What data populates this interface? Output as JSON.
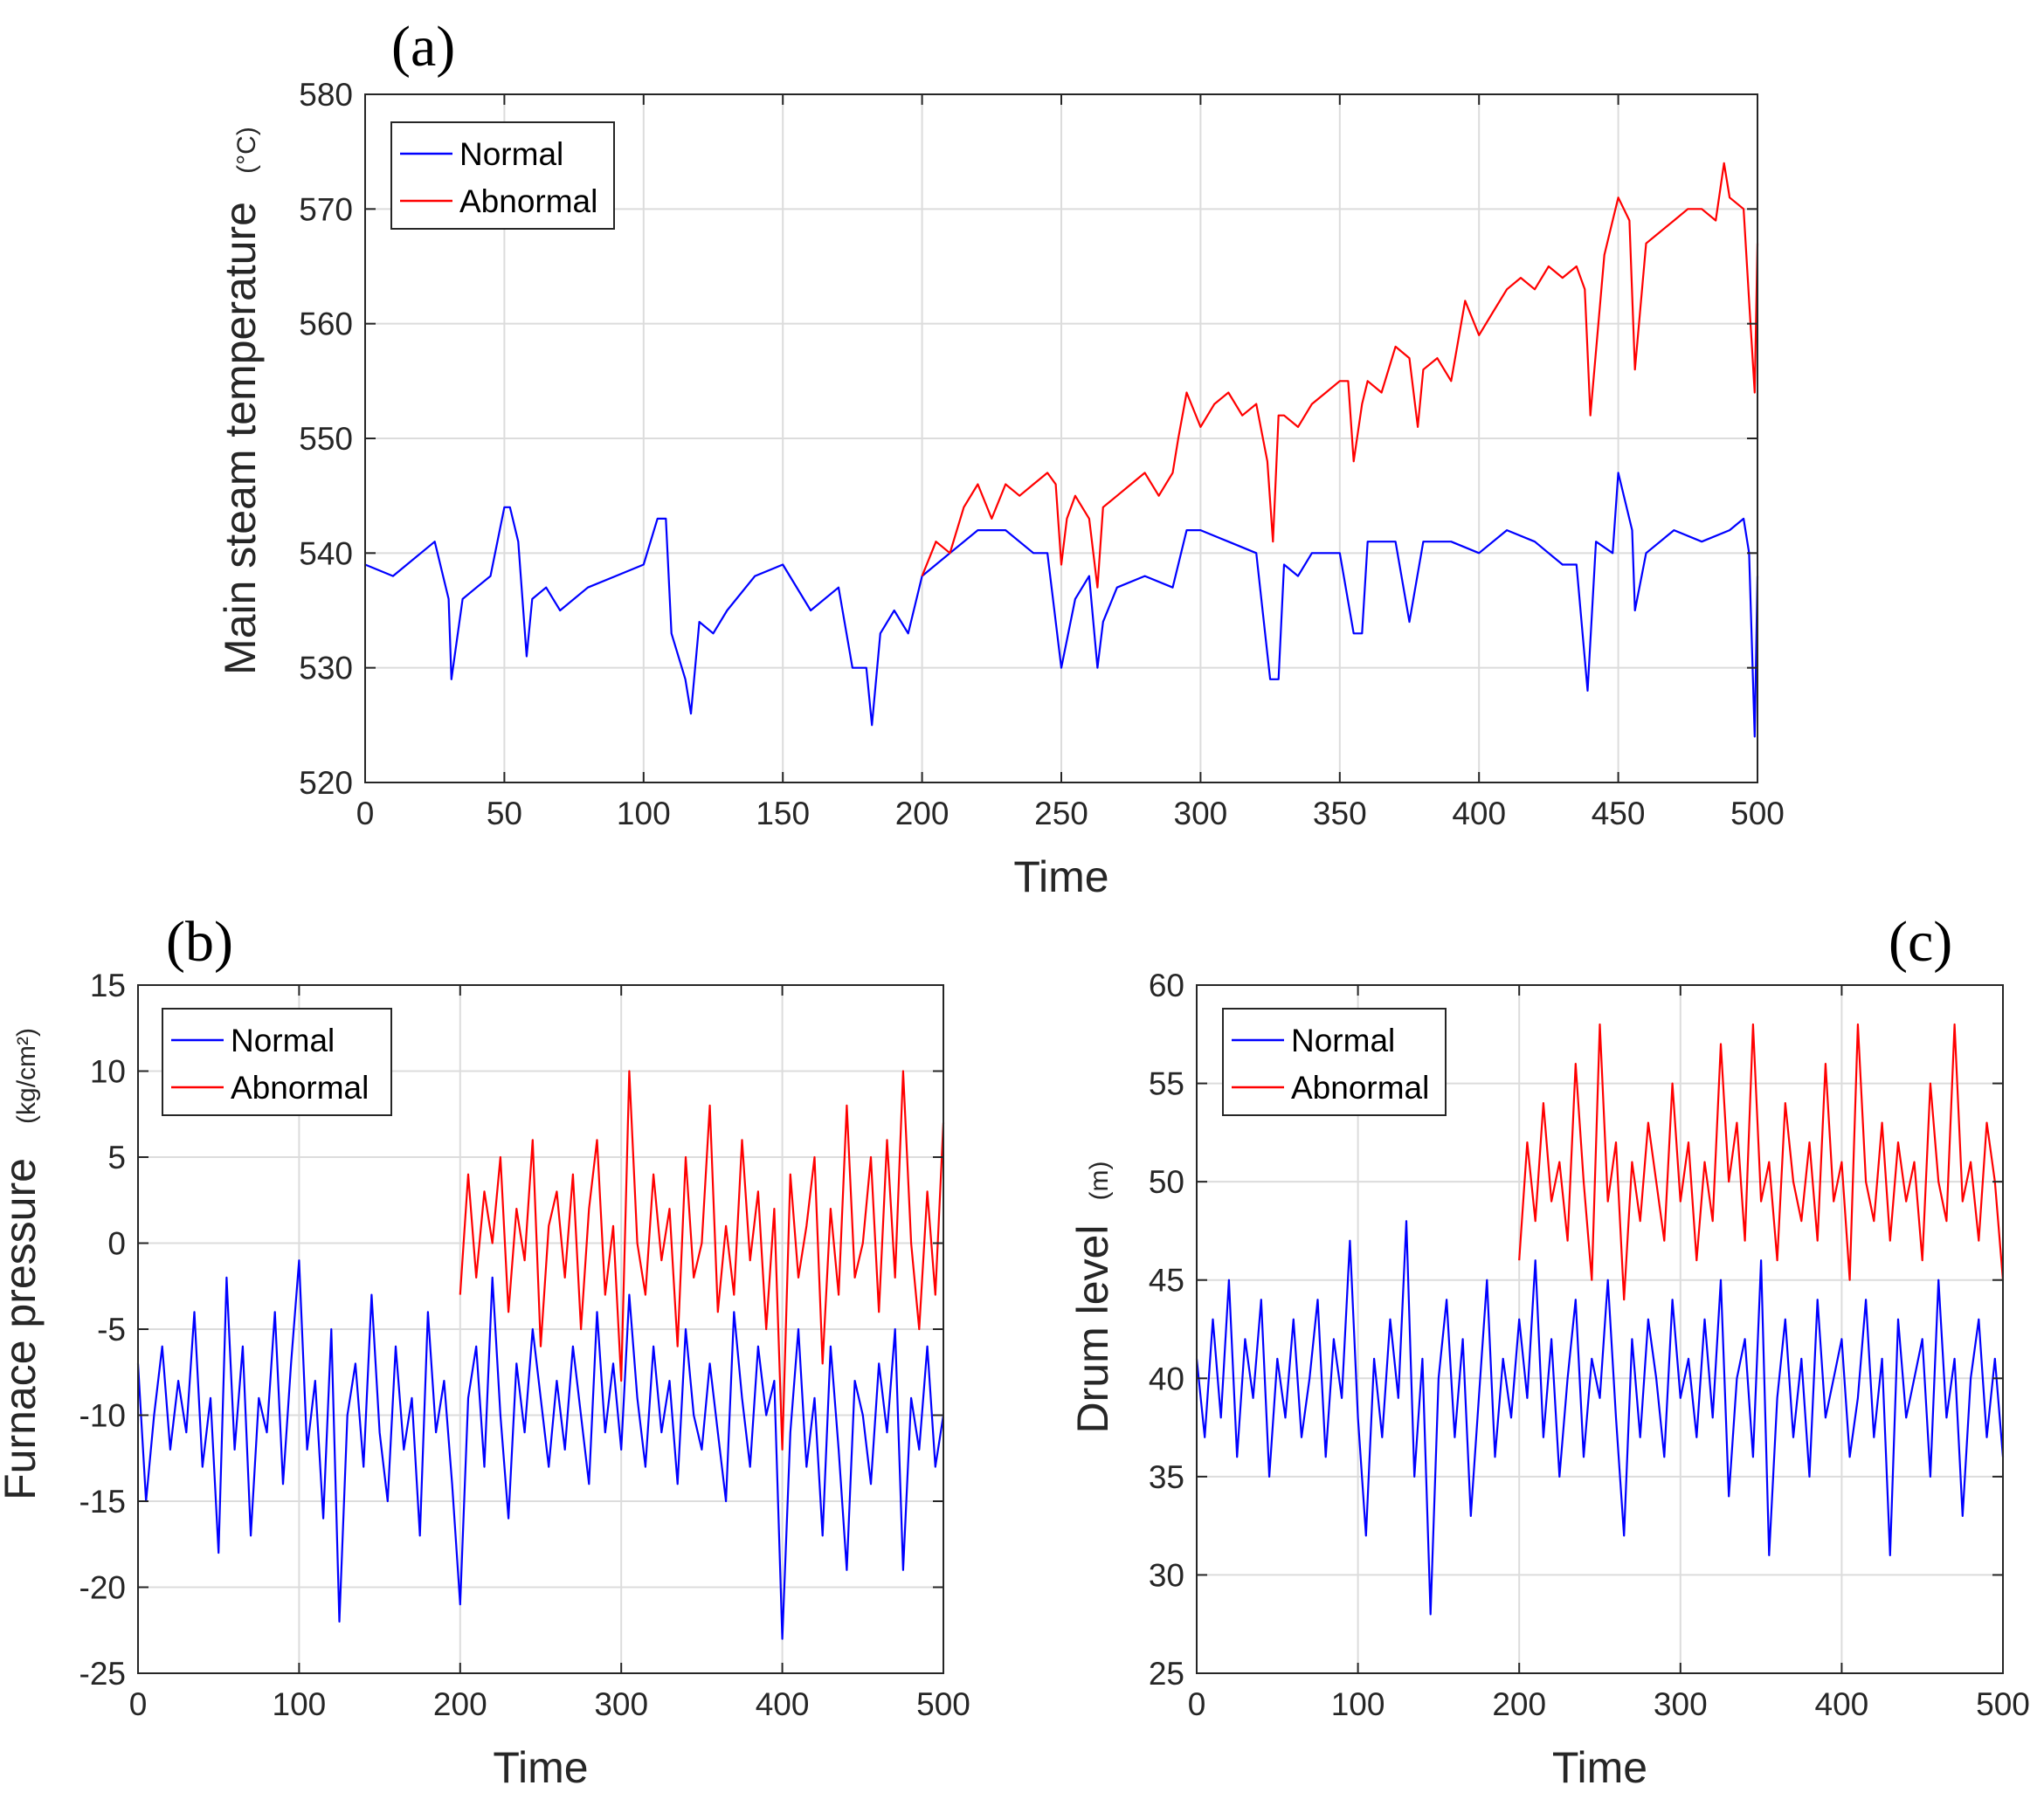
{
  "chart_data": [
    {
      "type": "line",
      "id": "a",
      "panel_label": "(a)",
      "xlabel": "Time",
      "ylabel": "Main steam temperature",
      "yunit": "(°C)",
      "xlim": [
        0,
        500
      ],
      "ylim": [
        520,
        580
      ],
      "xticks": [
        0,
        50,
        100,
        150,
        200,
        250,
        300,
        350,
        400,
        450,
        500
      ],
      "yticks": [
        520,
        530,
        540,
        550,
        560,
        570,
        580
      ],
      "grid": true,
      "legend_position": "top-left",
      "series": [
        {
          "name": "Normal",
          "color": "#0000ff",
          "x": [
            0,
            10,
            20,
            25,
            30,
            31,
            35,
            40,
            45,
            50,
            52,
            55,
            58,
            60,
            65,
            70,
            80,
            90,
            100,
            105,
            108,
            110,
            115,
            117,
            120,
            125,
            130,
            140,
            150,
            160,
            170,
            175,
            180,
            182,
            185,
            190,
            195,
            200,
            210,
            220,
            230,
            240,
            245,
            250,
            255,
            260,
            263,
            265,
            270,
            280,
            290,
            295,
            300,
            310,
            320,
            325,
            328,
            330,
            335,
            340,
            350,
            355,
            358,
            360,
            370,
            375,
            380,
            390,
            400,
            410,
            420,
            430,
            435,
            439,
            442,
            448,
            450,
            455,
            456,
            460,
            470,
            480,
            490,
            495,
            497,
            499,
            500
          ],
          "values": [
            539,
            538,
            540,
            541,
            536,
            529,
            536,
            537,
            538,
            544,
            544,
            541,
            531,
            536,
            537,
            535,
            537,
            538,
            539,
            543,
            543,
            533,
            529,
            526,
            534,
            533,
            535,
            538,
            539,
            535,
            537,
            530,
            530,
            525,
            533,
            535,
            533,
            538,
            540,
            542,
            542,
            540,
            540,
            530,
            536,
            538,
            530,
            534,
            537,
            538,
            537,
            542,
            542,
            541,
            540,
            529,
            529,
            539,
            538,
            540,
            540,
            533,
            533,
            541,
            541,
            534,
            541,
            541,
            540,
            542,
            541,
            539,
            539,
            528,
            541,
            540,
            547,
            542,
            535,
            540,
            542,
            541,
            542,
            543,
            540,
            524,
            538
          ]
        },
        {
          "name": "Abnormal",
          "color": "#ff0000",
          "x": [
            200,
            205,
            210,
            215,
            220,
            225,
            230,
            235,
            240,
            245,
            248,
            250,
            252,
            255,
            260,
            263,
            265,
            270,
            275,
            280,
            285,
            290,
            292,
            295,
            300,
            305,
            310,
            315,
            320,
            324,
            326,
            328,
            330,
            335,
            340,
            345,
            350,
            353,
            355,
            358,
            360,
            365,
            370,
            375,
            378,
            380,
            385,
            390,
            395,
            400,
            405,
            410,
            415,
            420,
            425,
            430,
            435,
            438,
            440,
            445,
            448,
            450,
            454,
            456,
            460,
            465,
            470,
            475,
            480,
            485,
            488,
            490,
            495,
            497,
            499,
            500
          ],
          "values": [
            538,
            541,
            540,
            544,
            546,
            543,
            546,
            545,
            546,
            547,
            546,
            539,
            543,
            545,
            543,
            537,
            544,
            545,
            546,
            547,
            545,
            547,
            550,
            554,
            551,
            553,
            554,
            552,
            553,
            548,
            541,
            552,
            552,
            551,
            553,
            554,
            555,
            555,
            548,
            553,
            555,
            554,
            558,
            557,
            551,
            556,
            557,
            555,
            562,
            559,
            561,
            563,
            564,
            563,
            565,
            564,
            565,
            563,
            552,
            566,
            569,
            571,
            569,
            556,
            567,
            568,
            569,
            570,
            570,
            569,
            574,
            571,
            570,
            562,
            554,
            567
          ]
        }
      ]
    },
    {
      "type": "line",
      "id": "b",
      "panel_label": "(b)",
      "xlabel": "Time",
      "ylabel": "Furnace pressure",
      "yunit": "(kg/cm²)",
      "xlim": [
        0,
        500
      ],
      "ylim": [
        -25,
        15
      ],
      "xticks": [
        0,
        100,
        200,
        300,
        400,
        500
      ],
      "yticks": [
        -25,
        -20,
        -15,
        -10,
        -5,
        0,
        5,
        10,
        15
      ],
      "grid": true,
      "legend_position": "top-left",
      "series": [
        {
          "name": "Normal",
          "color": "#0000ff",
          "x": [
            0,
            5,
            10,
            15,
            20,
            25,
            30,
            35,
            40,
            45,
            50,
            55,
            60,
            65,
            70,
            75,
            80,
            85,
            90,
            95,
            100,
            105,
            110,
            115,
            120,
            125,
            130,
            135,
            140,
            145,
            150,
            155,
            160,
            165,
            170,
            175,
            180,
            185,
            190,
            195,
            200,
            205,
            210,
            215,
            220,
            225,
            230,
            235,
            240,
            245,
            250,
            255,
            260,
            265,
            270,
            275,
            280,
            285,
            290,
            295,
            300,
            305,
            310,
            315,
            320,
            325,
            330,
            335,
            340,
            345,
            350,
            355,
            360,
            365,
            370,
            375,
            380,
            385,
            390,
            395,
            400,
            405,
            410,
            415,
            420,
            425,
            430,
            435,
            440,
            445,
            450,
            455,
            460,
            465,
            470,
            475,
            480,
            485,
            490,
            495,
            500
          ],
          "values": [
            -7,
            -15,
            -10,
            -6,
            -12,
            -8,
            -11,
            -4,
            -13,
            -9,
            -18,
            -2,
            -12,
            -6,
            -17,
            -9,
            -11,
            -4,
            -14,
            -7,
            -1,
            -12,
            -8,
            -16,
            -5,
            -22,
            -10,
            -7,
            -13,
            -3,
            -11,
            -15,
            -6,
            -12,
            -9,
            -17,
            -4,
            -11,
            -8,
            -14,
            -21,
            -9,
            -6,
            -13,
            -2,
            -10,
            -16,
            -7,
            -11,
            -5,
            -9,
            -13,
            -8,
            -12,
            -6,
            -10,
            -14,
            -4,
            -11,
            -7,
            -12,
            -3,
            -9,
            -13,
            -6,
            -11,
            -8,
            -14,
            -5,
            -10,
            -12,
            -7,
            -11,
            -15,
            -4,
            -9,
            -13,
            -6,
            -10,
            -8,
            -23,
            -11,
            -5,
            -13,
            -9,
            -17,
            -6,
            -12,
            -19,
            -8,
            -10,
            -14,
            -7,
            -11,
            -5,
            -19,
            -9,
            -12,
            -6,
            -13,
            -10
          ]
        },
        {
          "name": "Abnormal",
          "color": "#ff0000",
          "x": [
            200,
            205,
            210,
            215,
            220,
            225,
            230,
            235,
            240,
            245,
            250,
            255,
            260,
            265,
            270,
            275,
            280,
            285,
            290,
            295,
            300,
            305,
            310,
            315,
            320,
            325,
            330,
            335,
            340,
            345,
            350,
            355,
            360,
            365,
            370,
            375,
            380,
            385,
            390,
            395,
            400,
            405,
            410,
            415,
            420,
            425,
            430,
            435,
            440,
            445,
            450,
            455,
            460,
            465,
            470,
            475,
            480,
            485,
            490,
            495,
            500
          ],
          "values": [
            -3,
            4,
            -2,
            3,
            0,
            5,
            -4,
            2,
            -1,
            6,
            -6,
            1,
            3,
            -2,
            4,
            -5,
            2,
            6,
            -3,
            1,
            -8,
            10,
            0,
            -3,
            4,
            -1,
            2,
            -6,
            5,
            -2,
            0,
            8,
            -4,
            1,
            -3,
            6,
            -1,
            3,
            -5,
            2,
            -12,
            4,
            -2,
            1,
            5,
            -7,
            2,
            -3,
            8,
            -2,
            0,
            5,
            -4,
            6,
            -2,
            10,
            0,
            -5,
            3,
            -3,
            7
          ]
        }
      ]
    },
    {
      "type": "line",
      "id": "c",
      "panel_label": "(c)",
      "xlabel": "Time",
      "ylabel": "Drum level",
      "yunit": "(m)",
      "xlim": [
        0,
        500
      ],
      "ylim": [
        25,
        60
      ],
      "xticks": [
        0,
        100,
        200,
        300,
        400,
        500
      ],
      "yticks": [
        25,
        30,
        35,
        40,
        45,
        50,
        55,
        60
      ],
      "grid": true,
      "legend_position": "top-left",
      "series": [
        {
          "name": "Normal",
          "color": "#0000ff",
          "x": [
            0,
            5,
            10,
            15,
            20,
            25,
            30,
            35,
            40,
            45,
            50,
            55,
            60,
            65,
            70,
            75,
            80,
            85,
            90,
            95,
            100,
            105,
            110,
            115,
            120,
            125,
            130,
            135,
            140,
            145,
            150,
            155,
            160,
            165,
            170,
            175,
            180,
            185,
            190,
            195,
            200,
            205,
            210,
            215,
            220,
            225,
            230,
            235,
            240,
            245,
            250,
            255,
            260,
            265,
            270,
            275,
            280,
            285,
            290,
            295,
            300,
            305,
            310,
            315,
            320,
            325,
            330,
            335,
            340,
            345,
            350,
            355,
            360,
            365,
            370,
            375,
            380,
            385,
            390,
            395,
            400,
            405,
            410,
            415,
            420,
            425,
            430,
            435,
            440,
            445,
            450,
            455,
            460,
            465,
            470,
            475,
            480,
            485,
            490,
            495,
            500
          ],
          "values": [
            41,
            37,
            43,
            38,
            45,
            36,
            42,
            39,
            44,
            35,
            41,
            38,
            43,
            37,
            40,
            44,
            36,
            42,
            39,
            47,
            38,
            32,
            41,
            37,
            43,
            39,
            48,
            35,
            41,
            28,
            40,
            44,
            37,
            42,
            33,
            39,
            45,
            36,
            41,
            38,
            43,
            39,
            46,
            37,
            42,
            35,
            40,
            44,
            36,
            41,
            39,
            45,
            38,
            32,
            42,
            37,
            43,
            40,
            36,
            44,
            39,
            41,
            37,
            43,
            38,
            45,
            34,
            40,
            42,
            36,
            46,
            31,
            39,
            43,
            37,
            41,
            35,
            44,
            38,
            40,
            42,
            36,
            39,
            44,
            37,
            41,
            31,
            43,
            38,
            40,
            42,
            35,
            45,
            38,
            41,
            33,
            40,
            43,
            37,
            41,
            36
          ]
        },
        {
          "name": "Abnormal",
          "color": "#ff0000",
          "x": [
            200,
            205,
            210,
            215,
            220,
            225,
            230,
            235,
            240,
            245,
            250,
            255,
            260,
            265,
            270,
            275,
            280,
            285,
            290,
            295,
            300,
            305,
            310,
            315,
            320,
            325,
            330,
            335,
            340,
            345,
            350,
            355,
            360,
            365,
            370,
            375,
            380,
            385,
            390,
            395,
            400,
            405,
            410,
            415,
            420,
            425,
            430,
            435,
            440,
            445,
            450,
            455,
            460,
            465,
            470,
            475,
            480,
            485,
            490,
            495,
            500
          ],
          "values": [
            46,
            52,
            48,
            54,
            49,
            51,
            47,
            56,
            50,
            45,
            58,
            49,
            52,
            44,
            51,
            48,
            53,
            50,
            47,
            55,
            49,
            52,
            46,
            51,
            48,
            57,
            50,
            53,
            47,
            58,
            49,
            51,
            46,
            54,
            50,
            48,
            52,
            47,
            56,
            49,
            51,
            45,
            58,
            50,
            48,
            53,
            47,
            52,
            49,
            51,
            46,
            55,
            50,
            48,
            58,
            49,
            51,
            47,
            53,
            50,
            45
          ]
        }
      ]
    }
  ]
}
